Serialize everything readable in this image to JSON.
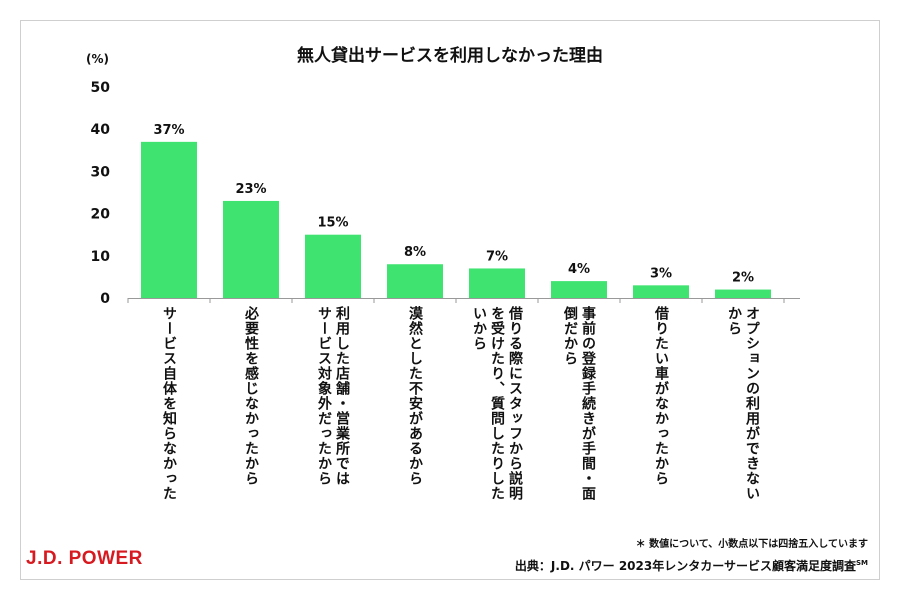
{
  "chart_data": {
    "type": "bar",
    "title": "無人貸出サービスを利用しなかった理由",
    "y_unit": "(%)",
    "ylim": [
      0,
      50
    ],
    "yticks": [
      0,
      10,
      20,
      30,
      40,
      50
    ],
    "bar_color": "#3ee370",
    "grid": false,
    "categories": [
      "サービス自体を知らなかった",
      "必要性を感じなかったから",
      "利用した店舗・営業所ではサービス対象外だったから",
      "漠然とした不安があるから",
      "借りる際にスタッフから説明を受けたり、質問したりしたいから",
      "事前の登録手続きが手間・面倒だから",
      "借りたい車がなかったから",
      "オプションの利用ができないから"
    ],
    "category_lines": [
      [
        "サービス自体を知らなかった"
      ],
      [
        "必要性を感じなかったから"
      ],
      [
        "利用した店舗・営業所では",
        "サービス対象外だったから"
      ],
      [
        "漠然とした不安があるから"
      ],
      [
        "借りる際にスタッフから説明",
        "を受けたり、質問したりした",
        "いから"
      ],
      [
        "事前の登録手続きが手間・面",
        "倒だから"
      ],
      [
        "借りたい車がなかったから"
      ],
      [
        "オプションの利用ができない",
        "から"
      ]
    ],
    "values": [
      37,
      23,
      15,
      8,
      7,
      4,
      3,
      2
    ],
    "data_labels": [
      "37%",
      "23%",
      "15%",
      "8%",
      "7%",
      "4%",
      "3%",
      "2%"
    ]
  },
  "footer": {
    "note": "＊ 数値について、小数点以下は四捨五入しています",
    "source": "出典：J.D. パワー 2023年レンタカーサービス顧客満足度調査",
    "source_mark": "SM",
    "logo": "J.D. POWER",
    "logo_color": "#d71920"
  }
}
